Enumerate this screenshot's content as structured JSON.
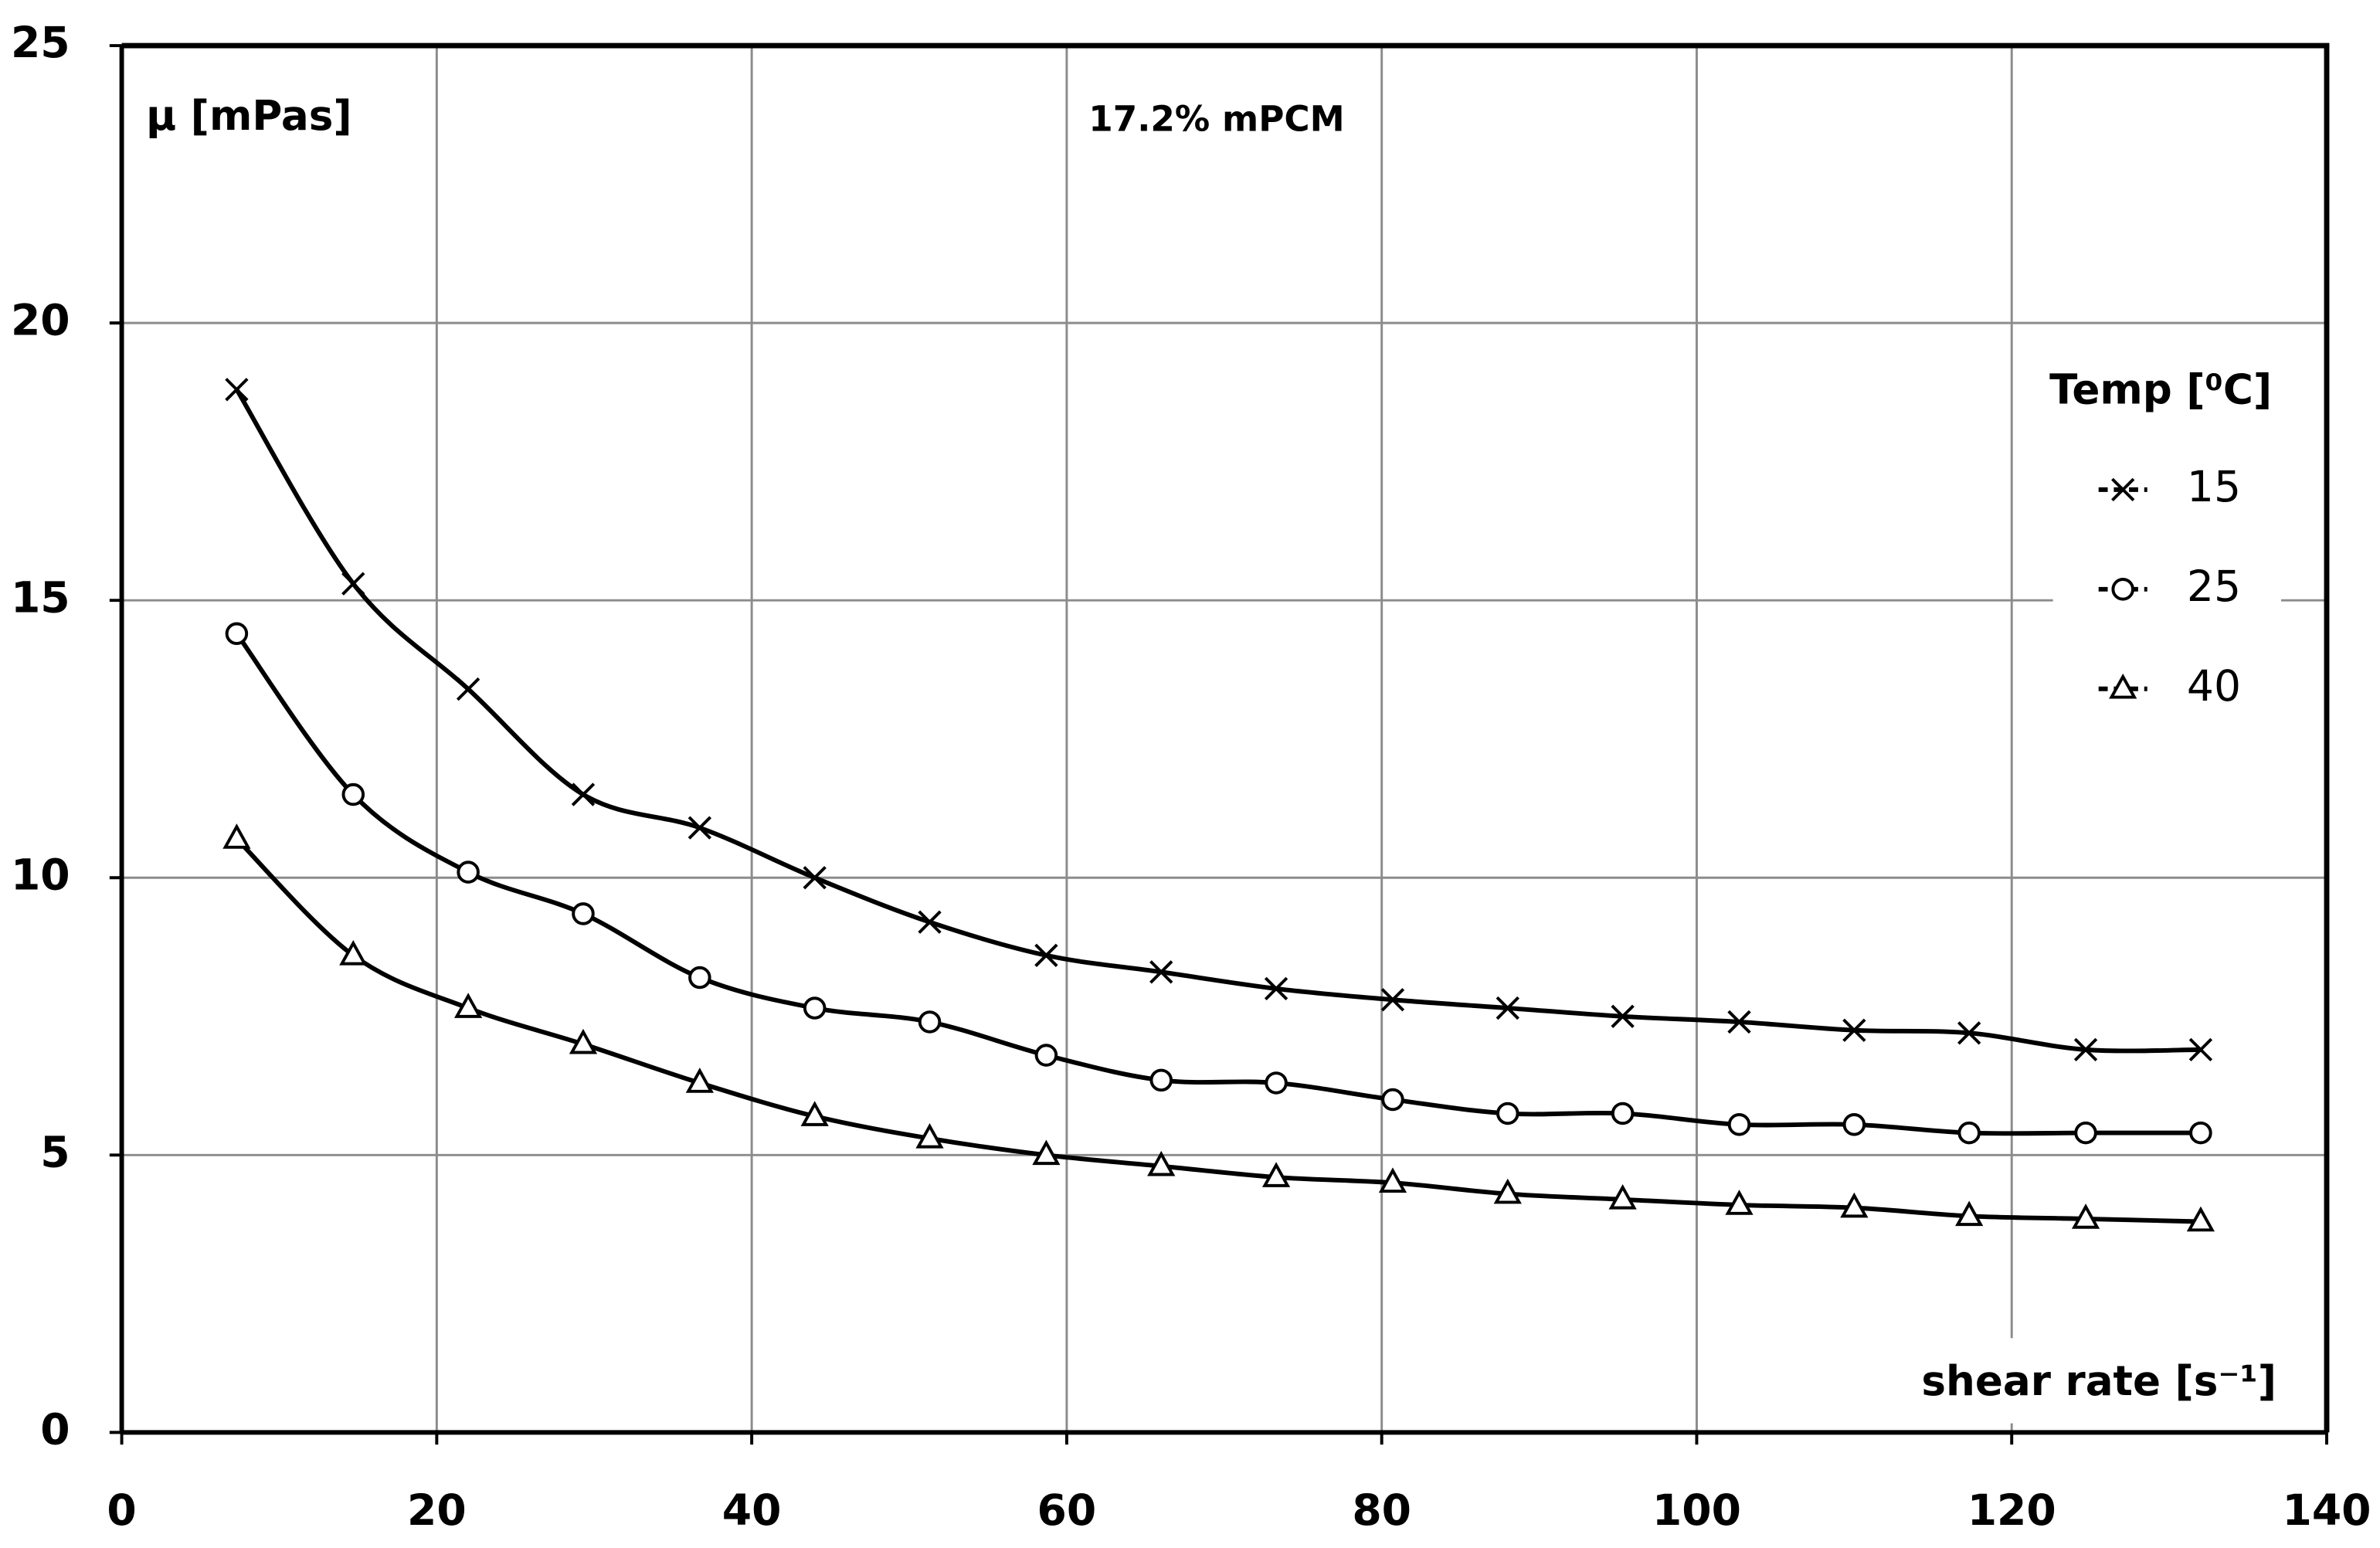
{
  "chart_data": {
    "type": "line",
    "title": "17.2% mPCM",
    "y_label": "μ [mPas]",
    "x_label": "shear rate [s⁻¹]",
    "legend_title": "Temp [⁰C]",
    "x": [
      7.3,
      14.7,
      22,
      29.3,
      36.7,
      44,
      51.3,
      58.7,
      66,
      73.3,
      80.7,
      88,
      95.3,
      102.7,
      110,
      117.3,
      124.7,
      132
    ],
    "series": [
      {
        "name": "15",
        "color": "#000000",
        "marker": "x",
        "values": [
          18.8,
          15.3,
          13.4,
          11.5,
          10.9,
          10.0,
          9.2,
          8.6,
          8.3,
          8.0,
          7.8,
          7.65,
          7.5,
          7.4,
          7.25,
          7.2,
          6.9,
          6.9
        ]
      },
      {
        "name": "25",
        "color": "#000000",
        "marker": "circle",
        "values": [
          14.4,
          11.5,
          10.1,
          9.35,
          8.2,
          7.65,
          7.4,
          6.8,
          6.35,
          6.3,
          6.0,
          5.75,
          5.75,
          5.55,
          5.55,
          5.4,
          5.4,
          5.4
        ]
      },
      {
        "name": "40",
        "color": "#000000",
        "marker": "triangle",
        "values": [
          10.7,
          8.6,
          7.65,
          7.0,
          6.3,
          5.7,
          5.3,
          5.0,
          4.8,
          4.6,
          4.5,
          4.3,
          4.2,
          4.1,
          4.05,
          3.9,
          3.85,
          3.8
        ]
      }
    ],
    "xlim": [
      0,
      140
    ],
    "xticks": [
      0,
      20,
      40,
      60,
      80,
      100,
      120,
      140
    ],
    "ylim": [
      0,
      25
    ],
    "yticks": [
      0,
      5,
      10,
      15,
      20,
      25
    ],
    "grid": true,
    "legend": "right"
  }
}
